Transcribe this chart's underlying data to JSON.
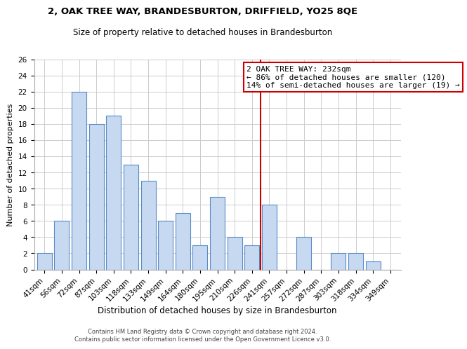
{
  "title": "2, OAK TREE WAY, BRANDESBURTON, DRIFFIELD, YO25 8QE",
  "subtitle": "Size of property relative to detached houses in Brandesburton",
  "xlabel": "Distribution of detached houses by size in Brandesburton",
  "ylabel": "Number of detached properties",
  "bar_labels": [
    "41sqm",
    "56sqm",
    "72sqm",
    "87sqm",
    "103sqm",
    "118sqm",
    "133sqm",
    "149sqm",
    "164sqm",
    "180sqm",
    "195sqm",
    "210sqm",
    "226sqm",
    "241sqm",
    "257sqm",
    "272sqm",
    "287sqm",
    "303sqm",
    "318sqm",
    "334sqm",
    "349sqm"
  ],
  "bar_values": [
    2,
    6,
    22,
    18,
    19,
    13,
    11,
    6,
    7,
    3,
    9,
    4,
    3,
    8,
    0,
    4,
    0,
    2,
    2,
    1,
    0
  ],
  "bar_color": "#c6d9f0",
  "bar_edge_color": "#5a8ac6",
  "vline_x": 12.5,
  "vline_color": "#cc0000",
  "annotation_text": "2 OAK TREE WAY: 232sqm\n← 86% of detached houses are smaller (120)\n14% of semi-detached houses are larger (19) →",
  "annotation_box_color": "#ffffff",
  "annotation_box_edge": "#cc0000",
  "ylim": [
    0,
    26
  ],
  "yticks": [
    0,
    2,
    4,
    6,
    8,
    10,
    12,
    14,
    16,
    18,
    20,
    22,
    24,
    26
  ],
  "footer_line1": "Contains HM Land Registry data © Crown copyright and database right 2024.",
  "footer_line2": "Contains public sector information licensed under the Open Government Licence v3.0.",
  "background_color": "#ffffff",
  "grid_color": "#cccccc",
  "title_fontsize": 9.5,
  "subtitle_fontsize": 8.5,
  "xlabel_fontsize": 8.5,
  "ylabel_fontsize": 8,
  "tick_fontsize": 7.5,
  "annotation_fontsize": 8,
  "footer_fontsize": 6
}
